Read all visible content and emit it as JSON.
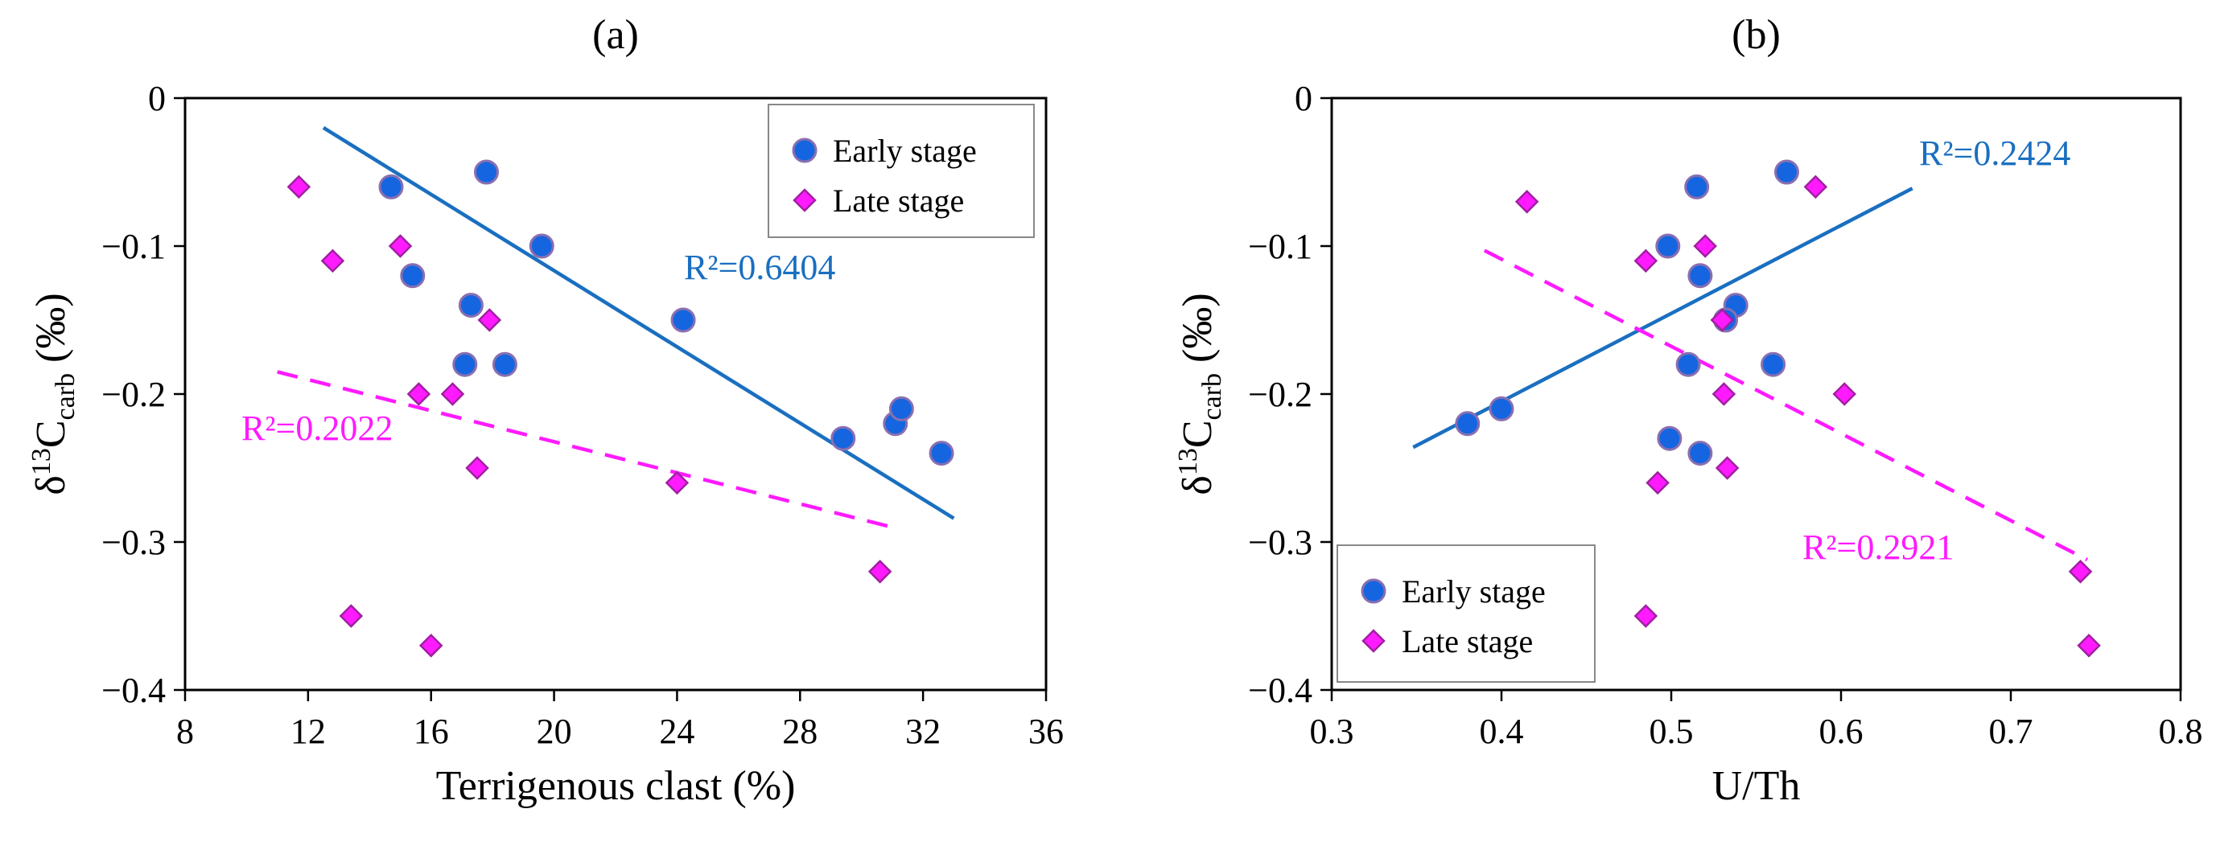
{
  "chart_data": [
    {
      "type": "scatter",
      "panel_label": "(a)",
      "xlabel": "Terrigenous clast (%)",
      "ylabel_prefix": "δ",
      "ylabel_sup": "13",
      "ylabel_main": "C",
      "ylabel_sub": "carb",
      "ylabel_suffix": "(‰)",
      "xlim": [
        8,
        36
      ],
      "ylim": [
        -0.4,
        0
      ],
      "xticks": [
        8,
        12,
        16,
        20,
        24,
        28,
        32,
        36
      ],
      "xtick_labels": [
        "8",
        "12",
        "16",
        "20",
        "24",
        "28",
        "32",
        "36"
      ],
      "yticks": [
        0,
        -0.1,
        -0.2,
        -0.3,
        -0.4
      ],
      "ytick_labels": [
        "0",
        "−0.1",
        "−0.2",
        "−0.3",
        "−0.4"
      ],
      "legend_position": "top-right",
      "series": [
        {
          "name": "Early stage",
          "marker": "circle",
          "color": "#1565e0",
          "edge_color": "#8a6fb0",
          "points": [
            [
              14.7,
              -0.06
            ],
            [
              17.8,
              -0.05
            ],
            [
              19.6,
              -0.1
            ],
            [
              15.4,
              -0.12
            ],
            [
              17.3,
              -0.14
            ],
            [
              24.2,
              -0.15
            ],
            [
              17.1,
              -0.18
            ],
            [
              18.4,
              -0.18
            ],
            [
              29.4,
              -0.23
            ],
            [
              31.1,
              -0.22
            ],
            [
              31.3,
              -0.21
            ],
            [
              32.6,
              -0.24
            ]
          ],
          "trendline": {
            "x": [
              12.5,
              33.0
            ],
            "y": [
              -0.02,
              -0.284
            ],
            "style": "solid",
            "color": "#1a6fc0"
          },
          "r2_label": "R²=0.6404"
        },
        {
          "name": "Late stage",
          "marker": "diamond",
          "color": "#ff1aff",
          "edge_color": "#a020a0",
          "points": [
            [
              11.7,
              -0.06
            ],
            [
              15.0,
              -0.1
            ],
            [
              12.8,
              -0.11
            ],
            [
              17.9,
              -0.15
            ],
            [
              15.6,
              -0.2
            ],
            [
              16.7,
              -0.2
            ],
            [
              17.5,
              -0.25
            ],
            [
              24.0,
              -0.26
            ],
            [
              30.6,
              -0.32
            ],
            [
              13.4,
              -0.35
            ],
            [
              16.0,
              -0.37
            ]
          ],
          "trendline": {
            "x": [
              11.0,
              31.0
            ],
            "y": [
              -0.185,
              -0.29
            ],
            "style": "dashed",
            "color": "#ff1aff"
          },
          "r2_label": "R²=0.2022"
        }
      ]
    },
    {
      "type": "scatter",
      "panel_label": "(b)",
      "xlabel": "U/Th",
      "ylabel_prefix": "δ",
      "ylabel_sup": "13",
      "ylabel_main": "C",
      "ylabel_sub": "carb",
      "ylabel_suffix": "(‰)",
      "xlim": [
        0.3,
        0.8
      ],
      "ylim": [
        -0.4,
        0
      ],
      "xticks": [
        0.3,
        0.4,
        0.5,
        0.6,
        0.7,
        0.8
      ],
      "xtick_labels": [
        "0.3",
        "0.4",
        "0.5",
        "0.6",
        "0.7",
        "0.8"
      ],
      "yticks": [
        0,
        -0.1,
        -0.2,
        -0.3,
        -0.4
      ],
      "ytick_labels": [
        "0",
        "−0.1",
        "−0.2",
        "−0.3",
        "−0.4"
      ],
      "legend_position": "bottom-left",
      "series": [
        {
          "name": "Early stage",
          "marker": "circle",
          "color": "#1565e0",
          "edge_color": "#8a6fb0",
          "points": [
            [
              0.568,
              -0.05
            ],
            [
              0.515,
              -0.06
            ],
            [
              0.498,
              -0.1
            ],
            [
              0.517,
              -0.12
            ],
            [
              0.538,
              -0.14
            ],
            [
              0.532,
              -0.15
            ],
            [
              0.51,
              -0.18
            ],
            [
              0.56,
              -0.18
            ],
            [
              0.38,
              -0.22
            ],
            [
              0.4,
              -0.21
            ],
            [
              0.499,
              -0.23
            ],
            [
              0.517,
              -0.24
            ]
          ],
          "trendline": {
            "x": [
              0.348,
              0.642
            ],
            "y": [
              -0.236,
              -0.061
            ],
            "style": "solid",
            "color": "#1a6fc0"
          },
          "r2_label": "R²=0.2424"
        },
        {
          "name": "Late stage",
          "marker": "diamond",
          "color": "#ff1aff",
          "edge_color": "#a020a0",
          "points": [
            [
              0.415,
              -0.07
            ],
            [
              0.585,
              -0.06
            ],
            [
              0.485,
              -0.11
            ],
            [
              0.52,
              -0.1
            ],
            [
              0.53,
              -0.15
            ],
            [
              0.531,
              -0.2
            ],
            [
              0.602,
              -0.2
            ],
            [
              0.533,
              -0.25
            ],
            [
              0.492,
              -0.26
            ],
            [
              0.741,
              -0.32
            ],
            [
              0.485,
              -0.35
            ],
            [
              0.746,
              -0.37
            ]
          ],
          "trendline": {
            "x": [
              0.39,
              0.745
            ],
            "y": [
              -0.103,
              -0.312
            ],
            "style": "dashed",
            "color": "#ff1aff"
          },
          "r2_label": "R²=0.2921"
        }
      ]
    }
  ]
}
